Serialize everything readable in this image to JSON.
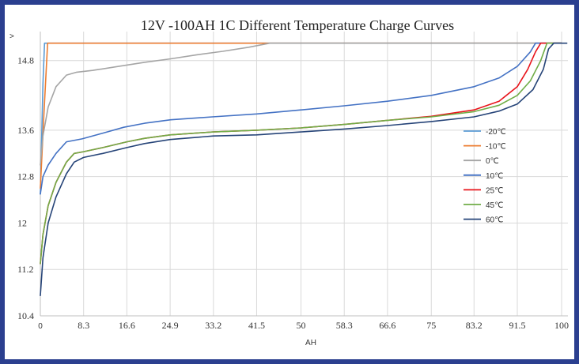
{
  "chart_data": {
    "type": "line",
    "title": "12V -100AH 1C Different Temperature Charge Curves",
    "xlabel": "AH",
    "ylabel": ">",
    "xlim": [
      0,
      101.5
    ],
    "ylim": [
      10.4,
      15.3
    ],
    "yticks": [
      10.4,
      11.2,
      12,
      12.8,
      13.6,
      14.8
    ],
    "yticklabels": [
      "10.4",
      "11.2",
      "12",
      "12.8",
      "13.6",
      "14.8"
    ],
    "xticks": [
      0,
      8.3,
      16.6,
      24.9,
      33.2,
      41.5,
      50,
      58.3,
      66.6,
      75,
      83.2,
      91.5,
      100
    ],
    "xticklabels": [
      "0",
      "8.3",
      "16.6",
      "24.9",
      "33.2",
      "41.5",
      "50",
      "58.3",
      "66.6",
      "75",
      "83.2",
      "91.5",
      "100"
    ],
    "grid": true,
    "legend_position": "right",
    "series": [
      {
        "name": "-20℃",
        "color": "#5b9bd5",
        "points": [
          [
            0,
            12.5
          ],
          [
            0.5,
            14.4
          ],
          [
            0.8,
            15.1
          ],
          [
            100,
            15.1
          ]
        ]
      },
      {
        "name": "-10℃",
        "color": "#ed7d31",
        "points": [
          [
            0,
            12.6
          ],
          [
            0.7,
            13.9
          ],
          [
            1.4,
            15.1
          ],
          [
            100,
            15.1
          ]
        ]
      },
      {
        "name": "0℃",
        "color": "#a5a5a5",
        "points": [
          [
            0,
            13.0
          ],
          [
            0.5,
            13.5
          ],
          [
            1.5,
            14.0
          ],
          [
            3,
            14.35
          ],
          [
            5,
            14.55
          ],
          [
            7,
            14.6
          ],
          [
            10,
            14.63
          ],
          [
            15,
            14.7
          ],
          [
            20,
            14.77
          ],
          [
            25,
            14.83
          ],
          [
            30,
            14.9
          ],
          [
            35,
            14.96
          ],
          [
            40,
            15.03
          ],
          [
            44,
            15.1
          ],
          [
            100,
            15.1
          ]
        ]
      },
      {
        "name": "10℃",
        "color": "#4472c4",
        "points": [
          [
            0,
            12.5
          ],
          [
            0.5,
            12.8
          ],
          [
            1.5,
            13.0
          ],
          [
            3,
            13.2
          ],
          [
            5,
            13.4
          ],
          [
            8,
            13.45
          ],
          [
            12,
            13.55
          ],
          [
            16,
            13.65
          ],
          [
            20,
            13.72
          ],
          [
            25,
            13.78
          ],
          [
            33,
            13.83
          ],
          [
            41.5,
            13.88
          ],
          [
            50,
            13.95
          ],
          [
            58.3,
            14.02
          ],
          [
            66.6,
            14.1
          ],
          [
            75,
            14.2
          ],
          [
            83.2,
            14.35
          ],
          [
            88,
            14.5
          ],
          [
            91.5,
            14.7
          ],
          [
            94,
            14.95
          ],
          [
            95,
            15.1
          ],
          [
            100,
            15.1
          ]
        ]
      },
      {
        "name": "25℃",
        "color": "#e8141b",
        "points": [
          [
            0,
            11.3
          ],
          [
            0.5,
            11.8
          ],
          [
            1.5,
            12.3
          ],
          [
            3,
            12.7
          ],
          [
            5,
            13.05
          ],
          [
            6.5,
            13.2
          ],
          [
            8.3,
            13.23
          ],
          [
            12,
            13.3
          ],
          [
            16.6,
            13.4
          ],
          [
            20,
            13.46
          ],
          [
            24.9,
            13.52
          ],
          [
            33.2,
            13.57
          ],
          [
            41.5,
            13.6
          ],
          [
            50,
            13.64
          ],
          [
            58.3,
            13.7
          ],
          [
            66.6,
            13.77
          ],
          [
            75,
            13.84
          ],
          [
            83.2,
            13.95
          ],
          [
            88,
            14.1
          ],
          [
            91.5,
            14.35
          ],
          [
            93.5,
            14.65
          ],
          [
            95,
            14.95
          ],
          [
            96,
            15.1
          ],
          [
            100,
            15.1
          ]
        ]
      },
      {
        "name": "45℃",
        "color": "#70ad47",
        "points": [
          [
            0,
            11.3
          ],
          [
            0.5,
            11.8
          ],
          [
            1.5,
            12.3
          ],
          [
            3,
            12.7
          ],
          [
            5,
            13.05
          ],
          [
            6.5,
            13.2
          ],
          [
            8.3,
            13.23
          ],
          [
            12,
            13.3
          ],
          [
            16.6,
            13.4
          ],
          [
            20,
            13.46
          ],
          [
            24.9,
            13.52
          ],
          [
            33.2,
            13.57
          ],
          [
            41.5,
            13.6
          ],
          [
            50,
            13.64
          ],
          [
            58.3,
            13.7
          ],
          [
            66.6,
            13.77
          ],
          [
            75,
            13.83
          ],
          [
            83.2,
            13.92
          ],
          [
            88,
            14.03
          ],
          [
            91.5,
            14.2
          ],
          [
            94,
            14.45
          ],
          [
            96,
            14.8
          ],
          [
            97.2,
            15.1
          ],
          [
            100,
            15.1
          ]
        ]
      },
      {
        "name": "60℃",
        "color": "#264478",
        "points": [
          [
            0,
            10.75
          ],
          [
            0.5,
            11.4
          ],
          [
            1.5,
            12.0
          ],
          [
            3,
            12.45
          ],
          [
            5,
            12.85
          ],
          [
            6.5,
            13.05
          ],
          [
            8.3,
            13.13
          ],
          [
            12,
            13.2
          ],
          [
            16.6,
            13.3
          ],
          [
            20,
            13.37
          ],
          [
            24.9,
            13.44
          ],
          [
            33.2,
            13.5
          ],
          [
            41.5,
            13.52
          ],
          [
            50,
            13.57
          ],
          [
            58.3,
            13.62
          ],
          [
            66.6,
            13.68
          ],
          [
            75,
            13.75
          ],
          [
            83.2,
            13.83
          ],
          [
            88,
            13.93
          ],
          [
            91.5,
            14.05
          ],
          [
            94.5,
            14.3
          ],
          [
            96.5,
            14.65
          ],
          [
            97.5,
            15.0
          ],
          [
            98.5,
            15.1
          ],
          [
            101,
            15.1
          ]
        ]
      }
    ]
  }
}
